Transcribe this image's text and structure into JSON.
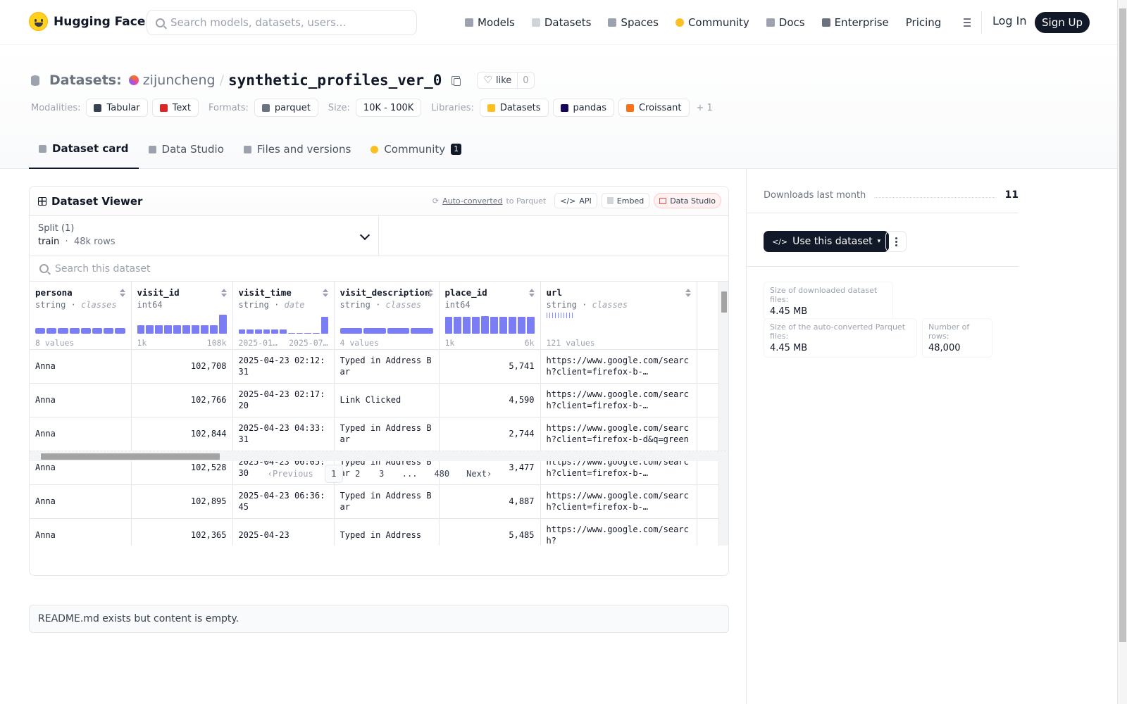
{
  "nav": {
    "logo": "Hugging Face",
    "search_placeholder": "Search models, datasets, users...",
    "links": [
      {
        "label": "Models",
        "icon": "cube-icon",
        "color": "#9ca3af"
      },
      {
        "label": "Datasets",
        "icon": "database-icon",
        "color": "#d1d5db"
      },
      {
        "label": "Spaces",
        "icon": "spaces-icon",
        "color": "#9ca3af"
      },
      {
        "label": "Community",
        "icon": "hf-face-icon",
        "color": "#fbbf24"
      },
      {
        "label": "Docs",
        "icon": "book-icon",
        "color": "#9ca3af"
      },
      {
        "label": "Enterprise",
        "icon": "enterprise-icon",
        "color": "#6b7280"
      },
      {
        "label": "Pricing",
        "icon": "",
        "color": ""
      }
    ],
    "login": "Log In",
    "signup": "Sign Up"
  },
  "header": {
    "crumb_label": "Datasets:",
    "owner": "zijuncheng",
    "separator": "/",
    "name": "synthetic_profiles_ver_0",
    "like_label": "like",
    "like_count": "0",
    "modalities_label": "Modalities:",
    "modalities": [
      {
        "label": "Tabular",
        "color": "#374151"
      },
      {
        "label": "Text",
        "color": "#dc2626"
      }
    ],
    "formats_label": "Formats:",
    "formats": [
      {
        "label": "parquet",
        "color": "#6b7280"
      }
    ],
    "size_label": "Size:",
    "size": "10K - 100K",
    "libraries_label": "Libraries:",
    "libraries": [
      {
        "label": "Datasets",
        "color": "#fbbf24"
      },
      {
        "label": "pandas",
        "color": "#150458"
      },
      {
        "label": "Croissant",
        "color": "#f97316"
      }
    ],
    "more": "+ 1",
    "tabs": [
      {
        "label": "Dataset card",
        "active": true,
        "icon": "cube-icon"
      },
      {
        "label": "Data Studio",
        "active": false,
        "icon": "table-icon"
      },
      {
        "label": "Files and versions",
        "active": false,
        "icon": "files-icon"
      },
      {
        "label": "Community",
        "active": false,
        "icon": "hf-face-icon",
        "badge": "1"
      }
    ]
  },
  "viewer": {
    "title": "Dataset Viewer",
    "auto_converted": "Auto-converted",
    "to_parquet": "to Parquet",
    "api_label": "API",
    "embed_label": "Embed",
    "studio_label": "Data Studio",
    "split_label": "Split (1)",
    "split_value": "train",
    "split_dot": "·",
    "split_rows": "48k rows",
    "search_placeholder": "Search this dataset",
    "columns": [
      {
        "name": "persona",
        "type": "string",
        "kind": "classes",
        "hist": "segments",
        "segments": 8,
        "foot_left": "8 values",
        "foot_right": "",
        "width": 144
      },
      {
        "name": "visit_id",
        "type": "int64",
        "kind": "",
        "hist": "bars",
        "bars": [
          0.4,
          0.4,
          0.4,
          0.4,
          0.4,
          0.4,
          0.4,
          0.4,
          0.4,
          0.9
        ],
        "foot_left": "1k",
        "foot_right": "108k",
        "width": 144
      },
      {
        "name": "visit_time",
        "type": "string",
        "kind": "date",
        "hist": "bars",
        "bars": [
          0.2,
          0.2,
          0.2,
          0.2,
          0.2,
          0.2,
          0.05,
          0.05,
          0.05,
          0.05,
          0.8
        ],
        "foot_left": "2025-01…",
        "foot_right": "2025-07…",
        "width": 144
      },
      {
        "name": "visit_description",
        "type": "string",
        "kind": "classes",
        "hist": "segments",
        "segments": 4,
        "foot_left": "4 values",
        "foot_right": "",
        "width": 149
      },
      {
        "name": "place_id",
        "type": "int64",
        "kind": "",
        "hist": "bars",
        "bars": [
          0.8,
          0.8,
          0.8,
          0.8,
          0.85,
          0.8,
          0.8,
          0.8,
          0.8,
          0.8
        ],
        "foot_left": "1k",
        "foot_right": "6k",
        "width": 144
      },
      {
        "name": "url",
        "type": "string",
        "kind": "classes",
        "hist": "ticks",
        "ticks": 10,
        "foot_left": "121 values",
        "foot_right": "",
        "width": 222
      },
      {
        "name": "",
        "type": "",
        "kind": "",
        "hist": "none",
        "foot_left": "",
        "foot_right": "",
        "width": 40
      }
    ],
    "rows": [
      [
        "Anna",
        "102,708",
        "2025-04-23 02:12:31",
        "Typed in Address Bar",
        "5,741",
        "https://www.google.com/search?client=firefox-b-…",
        ""
      ],
      [
        "Anna",
        "102,766",
        "2025-04-23 02:17:20",
        "Link Clicked",
        "4,590",
        "https://www.google.com/search?client=firefox-b-…",
        ""
      ],
      [
        "Anna",
        "102,844",
        "2025-04-23 04:33:31",
        "Typed in Address Bar",
        "2,744",
        "https://www.google.com/search?client=firefox-b-d&q=green+rug",
        ""
      ],
      [
        "Anna",
        "102,528",
        "2025-04-23 06:05:30",
        "Typed in Address Bar",
        "3,477",
        "https://www.google.com/search?client=firefox-b-…",
        ""
      ],
      [
        "Anna",
        "102,895",
        "2025-04-23 06:36:45",
        "Typed in Address Bar",
        "4,887",
        "https://www.google.com/search?client=firefox-b-…",
        ""
      ],
      [
        "Anna",
        "102,365",
        "2025-04-23",
        "Typed in Address",
        "5,485",
        "https://www.google.com/search?",
        ""
      ]
    ],
    "pager": {
      "previous": "Previous",
      "pages": [
        "1",
        "2",
        "3",
        "...",
        "480"
      ],
      "active": "1",
      "next": "Next"
    }
  },
  "readme": "README.md exists but content is empty.",
  "sidebar": {
    "downloads_label": "Downloads last month",
    "downloads_value": "11",
    "use_label": "Use this dataset",
    "stats": [
      {
        "label": "Size of downloaded dataset files:",
        "value": "4.45 MB"
      },
      {
        "label": "Size of the auto-converted Parquet files:",
        "value": "4.45 MB"
      },
      {
        "label": "Number of rows:",
        "value": "48,000"
      }
    ]
  },
  "colors": {
    "accent": "#6366f1",
    "dark": "#111827"
  }
}
